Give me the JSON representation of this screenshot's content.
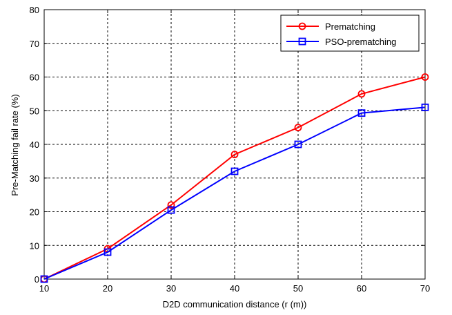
{
  "chart_data": {
    "type": "line",
    "title": "",
    "xlabel": "D2D communication distance (r (m))",
    "ylabel": "Pre-Matching fail rate (%)",
    "xlim": [
      10,
      70
    ],
    "ylim": [
      0,
      80
    ],
    "xticks": [
      10,
      20,
      30,
      40,
      50,
      60,
      70
    ],
    "yticks": [
      0,
      10,
      20,
      30,
      40,
      50,
      60,
      70,
      80
    ],
    "grid": true,
    "legend_position": "top-right",
    "x": [
      10,
      20,
      30,
      40,
      50,
      60,
      70
    ],
    "series": [
      {
        "name": "Prematching",
        "values": [
          0,
          9,
          22,
          37,
          45,
          55,
          60
        ],
        "color": "#ff0000",
        "marker": "circle"
      },
      {
        "name": "PSO-prematching",
        "values": [
          0,
          8,
          20.5,
          32,
          40,
          49.3,
          51
        ],
        "color": "#0000ff",
        "marker": "square"
      }
    ]
  }
}
